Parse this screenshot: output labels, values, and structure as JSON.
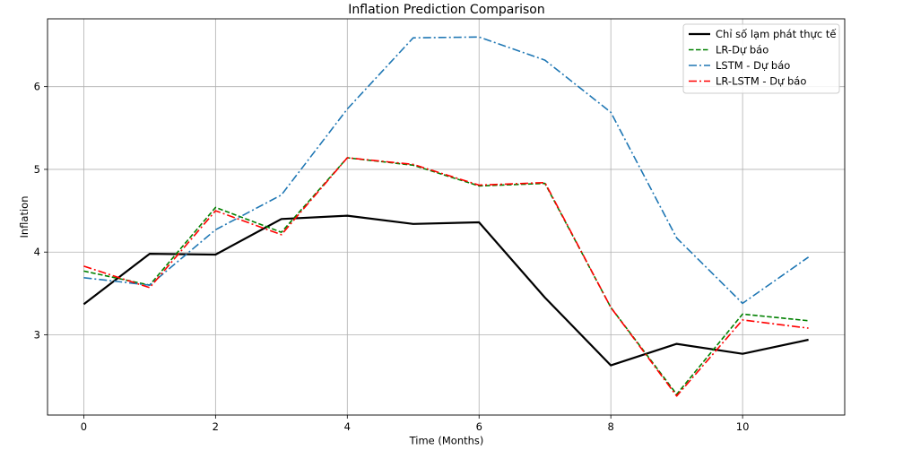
{
  "chart_data": {
    "type": "line",
    "title": "Inflation Prediction Comparison",
    "xlabel": "Time (Months)",
    "ylabel": "Inflation",
    "xlim": [
      -0.55,
      11.55
    ],
    "ylim": [
      2.03,
      6.82
    ],
    "xticks": [
      0,
      2,
      4,
      6,
      8,
      10
    ],
    "yticks": [
      3,
      4,
      5,
      6
    ],
    "grid": true,
    "legend_position": "top-right",
    "x": [
      0,
      1,
      2,
      3,
      4,
      5,
      6,
      7,
      8,
      9,
      10,
      11
    ],
    "series": [
      {
        "name": "Chỉ số lạm phát thực tế",
        "color": "#000000",
        "line_style": "solid",
        "values": [
          3.37,
          3.98,
          3.97,
          4.4,
          4.44,
          4.34,
          4.36,
          3.45,
          2.63,
          2.89,
          2.77,
          2.94
        ]
      },
      {
        "name": "LR-Dự báo",
        "color": "#008000",
        "line_style": "dashed",
        "values": [
          3.77,
          3.6,
          4.54,
          4.24,
          5.14,
          5.05,
          4.8,
          4.83,
          3.33,
          2.28,
          3.25,
          3.17
        ]
      },
      {
        "name": "LSTM - Dự báo",
        "color": "#1f77b4",
        "line_style": "dashdot",
        "values": [
          3.69,
          3.6,
          4.27,
          4.69,
          5.73,
          6.59,
          6.6,
          6.32,
          5.69,
          4.17,
          3.38,
          3.94
        ]
      },
      {
        "name": "LR-LSTM - Dự báo",
        "color": "#ff0000",
        "line_style": "dashdot",
        "values": [
          3.83,
          3.57,
          4.5,
          4.21,
          5.14,
          5.06,
          4.81,
          4.84,
          3.33,
          2.26,
          3.18,
          3.08
        ]
      }
    ]
  }
}
